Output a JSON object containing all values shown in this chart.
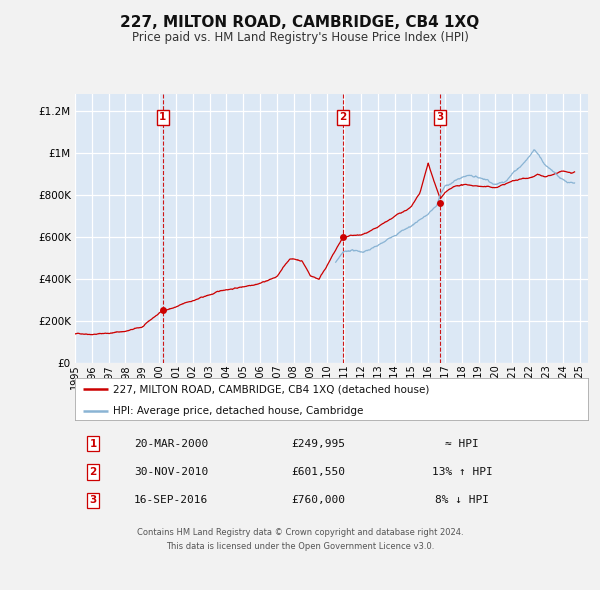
{
  "title": "227, MILTON ROAD, CAMBRIDGE, CB4 1XQ",
  "subtitle": "Price paid vs. HM Land Registry's House Price Index (HPI)",
  "title_fontsize": 11,
  "subtitle_fontsize": 8.5,
  "plot_bg_color": "#dce8f5",
  "grid_color": "#ffffff",
  "ylabel_ticks": [
    "£0",
    "£200K",
    "£400K",
    "£600K",
    "£800K",
    "£1M",
    "£1.2M"
  ],
  "ytick_values": [
    0,
    200000,
    400000,
    600000,
    800000,
    1000000,
    1200000
  ],
  "ylim": [
    0,
    1280000
  ],
  "xlim_start": 1995.0,
  "xlim_end": 2025.5,
  "red_line_label": "227, MILTON ROAD, CAMBRIDGE, CB4 1XQ (detached house)",
  "blue_line_label": "HPI: Average price, detached house, Cambridge",
  "annotations": [
    {
      "num": 1,
      "date": "20-MAR-2000",
      "price": "£249,995",
      "vs_hpi": "≈ HPI",
      "x_year": 2000.21,
      "y_val": 249995
    },
    {
      "num": 2,
      "date": "30-NOV-2010",
      "price": "£601,550",
      "vs_hpi": "13% ↑ HPI",
      "x_year": 2010.92,
      "y_val": 601550
    },
    {
      "num": 3,
      "date": "16-SEP-2016",
      "price": "£760,000",
      "vs_hpi": "8% ↓ HPI",
      "x_year": 2016.71,
      "y_val": 760000
    }
  ],
  "footer_line1": "Contains HM Land Registry data © Crown copyright and database right 2024.",
  "footer_line2": "This data is licensed under the Open Government Licence v3.0.",
  "red_color": "#cc0000",
  "blue_color": "#8ab4d4",
  "dot_color": "#cc0000",
  "vline_color": "#cc0000",
  "fig_bg": "#f2f2f2"
}
